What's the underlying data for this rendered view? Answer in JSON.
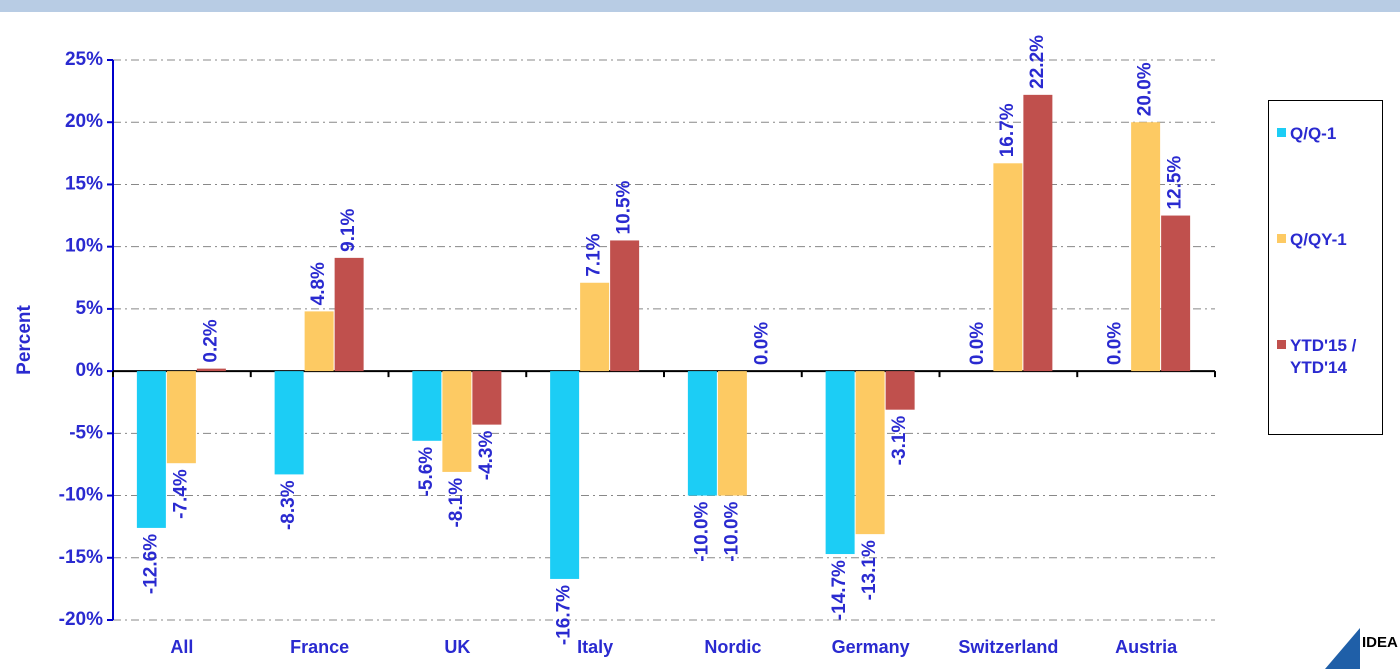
{
  "chart_data": {
    "type": "bar",
    "y_label": "Percent",
    "logo": "IDEA",
    "categories": [
      "All",
      "France",
      "UK",
      "Italy",
      "Nordic",
      "Germany",
      "Switzerland",
      "Austria"
    ],
    "series": [
      {
        "name": "Q/Q-1",
        "color": "#1ccdf5",
        "values": [
          -12.6,
          -8.3,
          -5.6,
          -16.7,
          -10.0,
          -14.7,
          0.0,
          0.0
        ],
        "value_labels": [
          "-12.6%",
          "-8.3%",
          "-5.6%",
          "-16.7%",
          "-10.0%",
          "-14.7%",
          "0.0%",
          "0.0%"
        ]
      },
      {
        "name": "Q/QY-1",
        "color": "#fdca63",
        "values": [
          -7.4,
          4.8,
          -8.1,
          7.1,
          -10.0,
          -13.1,
          16.7,
          20.0
        ],
        "value_labels": [
          "-7.4%",
          "4.8%",
          "-8.1%",
          "7.1%",
          "-10.0%",
          "-13.1%",
          "16.7%",
          "20.0%"
        ]
      },
      {
        "name": "YTD'15 / YTD'14",
        "color": "#c0504d",
        "values": [
          0.2,
          9.1,
          -4.3,
          10.5,
          0.0,
          -3.1,
          22.2,
          12.5
        ],
        "value_labels": [
          "0.2%",
          "9.1%",
          "-4.3%",
          "10.5%",
          "0.0%",
          "-3.1%",
          "22.2%",
          "12.5%"
        ]
      }
    ],
    "ylim": [
      -20,
      25
    ],
    "yticks": [
      {
        "value": -20,
        "label": "-20%"
      },
      {
        "value": -15,
        "label": "-15%"
      },
      {
        "value": -10,
        "label": "-10%"
      },
      {
        "value": -5,
        "label": "-5%"
      },
      {
        "value": 0,
        "label": "0%"
      },
      {
        "value": 5,
        "label": "5%"
      },
      {
        "value": 10,
        "label": "10%"
      },
      {
        "value": 15,
        "label": "15%"
      },
      {
        "value": 20,
        "label": "20%"
      },
      {
        "value": 25,
        "label": "25%"
      }
    ],
    "grid": true,
    "legend": "right"
  }
}
